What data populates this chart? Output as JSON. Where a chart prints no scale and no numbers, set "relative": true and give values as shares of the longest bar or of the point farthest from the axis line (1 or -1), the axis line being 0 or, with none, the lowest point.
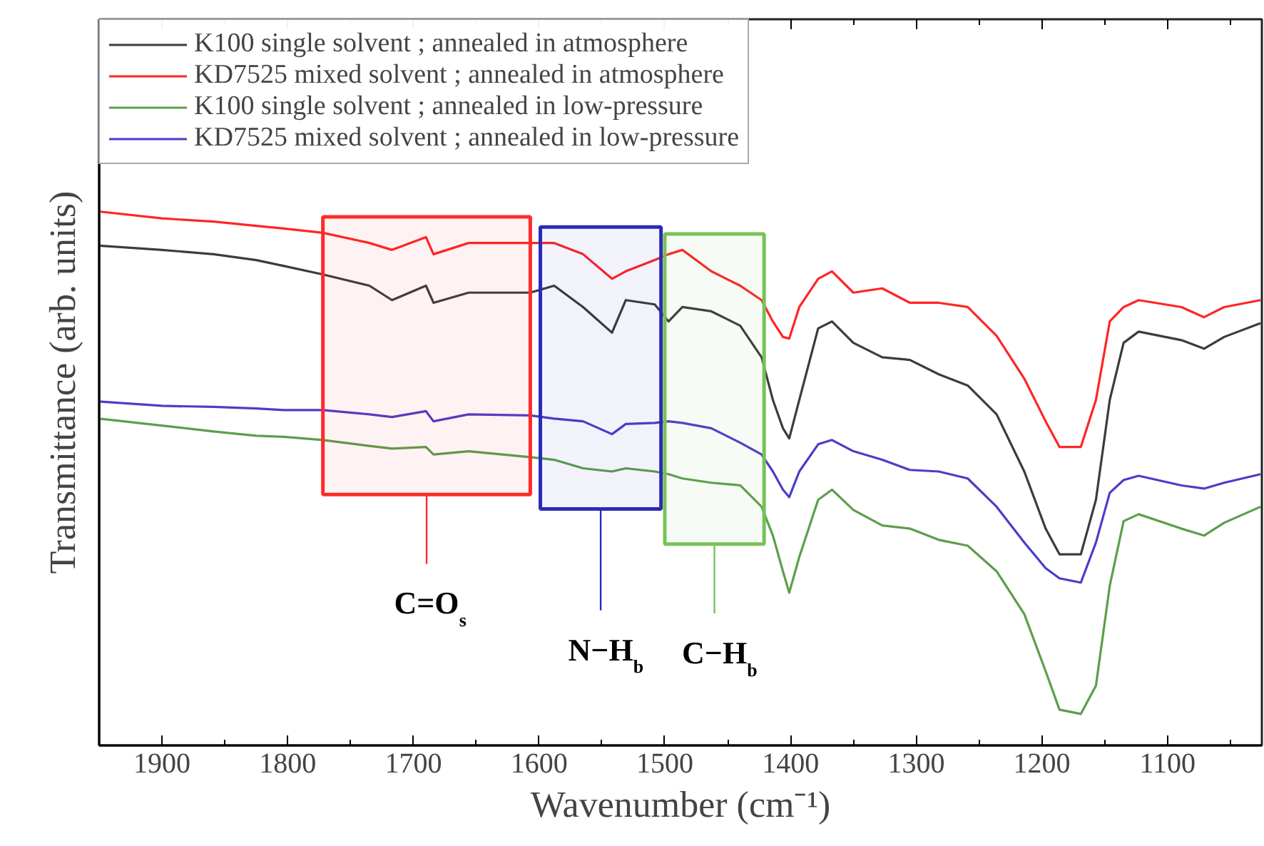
{
  "chart_data": {
    "type": "line",
    "xlabel": "Wavenumber (cm⁻¹)",
    "ylabel": "Transmittance (arb. units)",
    "relative": true,
    "legend": "top left",
    "x": [
      1950,
      1900,
      1859,
      1825,
      1803,
      1772,
      1735,
      1717,
      1690,
      1684,
      1656,
      1607,
      1588,
      1565,
      1542,
      1531,
      1508,
      1497,
      1486,
      1463,
      1440,
      1423,
      1414,
      1406,
      1401,
      1393,
      1378,
      1367,
      1350,
      1327,
      1305,
      1282,
      1259,
      1236,
      1214,
      1197,
      1186,
      1169,
      1157,
      1146,
      1135,
      1123,
      1089,
      1071,
      1055,
      1026
    ],
    "xlim": [
      1950,
      1025
    ],
    "xticks": [
      1900,
      1800,
      1700,
      1600,
      1500,
      1400,
      1300,
      1200,
      1100
    ],
    "series": [
      {
        "name": "K100 single solvent ; annealed in atmosphere",
        "color": "#3c3c3c",
        "values": [
          0.936,
          0.928,
          0.92,
          0.909,
          0.898,
          0.882,
          0.861,
          0.834,
          0.861,
          0.829,
          0.848,
          0.848,
          0.861,
          0.821,
          0.773,
          0.834,
          0.826,
          0.794,
          0.821,
          0.813,
          0.786,
          0.727,
          0.647,
          0.594,
          0.575,
          0.647,
          0.781,
          0.794,
          0.754,
          0.727,
          0.722,
          0.695,
          0.674,
          0.62,
          0.513,
          0.406,
          0.358,
          0.358,
          0.46,
          0.647,
          0.754,
          0.775,
          0.759,
          0.743,
          0.765,
          0.791
        ]
      },
      {
        "name": "KD7525 mixed solvent ; annealed in atmosphere",
        "color": "#ff2525",
        "values": [
          1.0,
          0.987,
          0.981,
          0.973,
          0.968,
          0.96,
          0.941,
          0.928,
          0.952,
          0.92,
          0.941,
          0.941,
          0.941,
          0.92,
          0.874,
          0.888,
          0.909,
          0.92,
          0.928,
          0.888,
          0.861,
          0.834,
          0.794,
          0.765,
          0.762,
          0.821,
          0.874,
          0.888,
          0.848,
          0.856,
          0.829,
          0.829,
          0.821,
          0.767,
          0.687,
          0.607,
          0.559,
          0.559,
          0.647,
          0.794,
          0.821,
          0.834,
          0.821,
          0.802,
          0.821,
          0.834
        ]
      },
      {
        "name": "K100 single solvent ; annealed in low-pressure",
        "color": "#5c9e4c",
        "values": [
          0.612,
          0.599,
          0.588,
          0.58,
          0.578,
          0.572,
          0.561,
          0.556,
          0.559,
          0.545,
          0.551,
          0.54,
          0.535,
          0.519,
          0.513,
          0.519,
          0.513,
          0.508,
          0.5,
          0.492,
          0.487,
          0.447,
          0.393,
          0.326,
          0.286,
          0.353,
          0.46,
          0.479,
          0.441,
          0.412,
          0.406,
          0.385,
          0.374,
          0.326,
          0.246,
          0.139,
          0.067,
          0.059,
          0.112,
          0.299,
          0.42,
          0.433,
          0.406,
          0.393,
          0.417,
          0.447
        ]
      },
      {
        "name": "KD7525 mixed solvent ; annealed in low-pressure",
        "color": "#4a3ec8",
        "values": [
          0.644,
          0.636,
          0.634,
          0.631,
          0.628,
          0.628,
          0.62,
          0.615,
          0.626,
          0.607,
          0.62,
          0.618,
          0.612,
          0.607,
          0.583,
          0.602,
          0.604,
          0.607,
          0.604,
          0.594,
          0.567,
          0.545,
          0.513,
          0.479,
          0.465,
          0.513,
          0.564,
          0.572,
          0.551,
          0.535,
          0.516,
          0.513,
          0.5,
          0.447,
          0.38,
          0.332,
          0.313,
          0.305,
          0.38,
          0.473,
          0.497,
          0.505,
          0.487,
          0.481,
          0.492,
          0.508
        ]
      }
    ],
    "bands": [
      {
        "axis": "x",
        "from": 1772,
        "to": 1607,
        "label": "C=O$_{s}$",
        "color": "#ff2a2a"
      },
      {
        "axis": "x",
        "from": 1599,
        "to": 1503,
        "label": "N−H$_{b}$",
        "color": "#2a2ab8"
      },
      {
        "axis": "x",
        "from": 1500,
        "to": 1421,
        "label": "C−H$_{b}$",
        "color": "#78c258"
      }
    ]
  }
}
